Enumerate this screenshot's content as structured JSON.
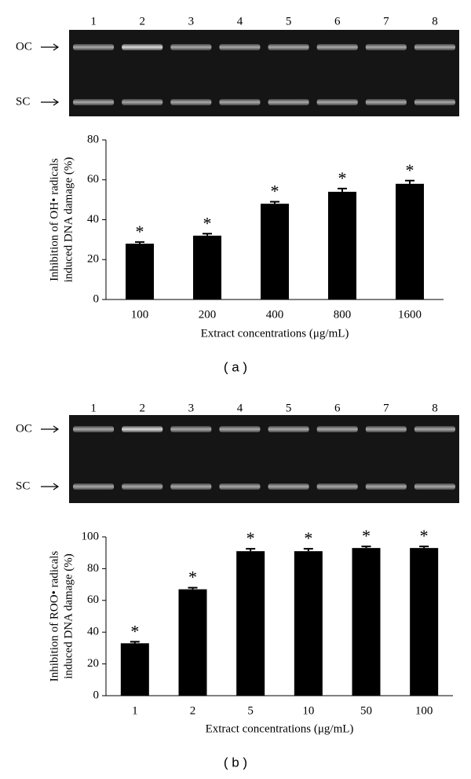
{
  "chart_data": [
    {
      "type": "bar",
      "panel": "( a )",
      "lanes": [
        "1",
        "2",
        "3",
        "4",
        "5",
        "6",
        "7",
        "8"
      ],
      "band_labels": [
        "OC",
        "SC"
      ],
      "ylabel": [
        "Inhibition of OH• radicals",
        "induced DNA damage (%)"
      ],
      "xlabel": "Extract concentrations (μg/mL)",
      "categories": [
        "100",
        "200",
        "400",
        "800",
        "1600"
      ],
      "values": [
        28,
        32,
        48,
        54,
        58
      ],
      "errors": [
        0.8,
        1,
        1,
        1.6,
        1.6
      ],
      "annotations": [
        "*",
        "*",
        "*",
        "*",
        "*"
      ],
      "color": "#000000",
      "ylim": [
        0,
        80
      ],
      "yticks": [
        0,
        20,
        40,
        60,
        80
      ]
    },
    {
      "type": "bar",
      "panel": "( b )",
      "lanes": [
        "1",
        "2",
        "3",
        "4",
        "5",
        "6",
        "7",
        "8"
      ],
      "band_labels": [
        "OC",
        "SC"
      ],
      "ylabel": [
        "Inhibition of ROO• radicals",
        "induced DNA damage (%)"
      ],
      "xlabel": "Extract concentrations (μg/mL)",
      "categories": [
        "1",
        "2",
        "5",
        "10",
        "50",
        "100"
      ],
      "values": [
        33,
        67,
        91,
        91,
        93,
        93
      ],
      "errors": [
        1,
        1,
        1.5,
        1.5,
        1,
        1
      ],
      "annotations": [
        "*",
        "*",
        "*",
        "*",
        "*",
        "*"
      ],
      "color": "#000000",
      "ylim": [
        0,
        100
      ],
      "yticks": [
        0,
        20,
        40,
        60,
        80,
        100
      ]
    }
  ]
}
